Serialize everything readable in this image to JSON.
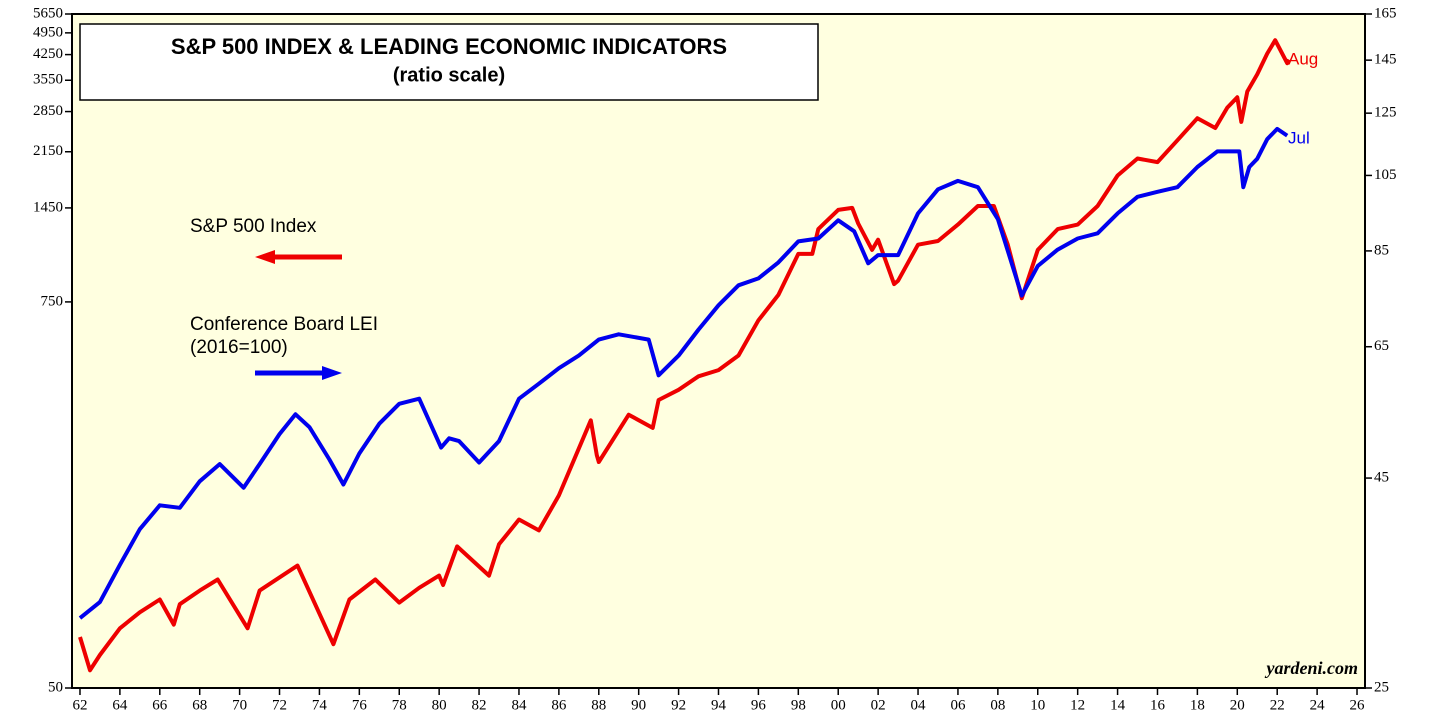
{
  "chart_data": {
    "type": "line",
    "title": "S&P 500 INDEX & LEADING ECONOMIC INDICATORS",
    "subtitle": "(ratio scale)",
    "source": "yardeni.com",
    "xlim": [
      1961.6,
      2026.4
    ],
    "xticks": [
      {
        "value": 1962,
        "label": "62"
      },
      {
        "value": 1964,
        "label": "64"
      },
      {
        "value": 1966,
        "label": "66"
      },
      {
        "value": 1968,
        "label": "68"
      },
      {
        "value": 1970,
        "label": "70"
      },
      {
        "value": 1972,
        "label": "72"
      },
      {
        "value": 1974,
        "label": "74"
      },
      {
        "value": 1976,
        "label": "76"
      },
      {
        "value": 1978,
        "label": "78"
      },
      {
        "value": 1980,
        "label": "80"
      },
      {
        "value": 1982,
        "label": "82"
      },
      {
        "value": 1984,
        "label": "84"
      },
      {
        "value": 1986,
        "label": "86"
      },
      {
        "value": 1988,
        "label": "88"
      },
      {
        "value": 1990,
        "label": "90"
      },
      {
        "value": 1992,
        "label": "92"
      },
      {
        "value": 1994,
        "label": "94"
      },
      {
        "value": 1996,
        "label": "96"
      },
      {
        "value": 1998,
        "label": "98"
      },
      {
        "value": 2000,
        "label": "00"
      },
      {
        "value": 2002,
        "label": "02"
      },
      {
        "value": 2004,
        "label": "04"
      },
      {
        "value": 2006,
        "label": "06"
      },
      {
        "value": 2008,
        "label": "08"
      },
      {
        "value": 2010,
        "label": "10"
      },
      {
        "value": 2012,
        "label": "12"
      },
      {
        "value": 2014,
        "label": "14"
      },
      {
        "value": 2016,
        "label": "16"
      },
      {
        "value": 2018,
        "label": "18"
      },
      {
        "value": 2020,
        "label": "20"
      },
      {
        "value": 2022,
        "label": "22"
      },
      {
        "value": 2024,
        "label": "24"
      },
      {
        "value": 2026,
        "label": "26"
      }
    ],
    "ylim": [
      50,
      5650
    ],
    "yticks": [
      50,
      750,
      1450,
      2150,
      2850,
      3550,
      4250,
      4950,
      5650
    ],
    "ylog": true,
    "y2lim": [
      25,
      165
    ],
    "y2ticks": [
      25,
      45,
      65,
      85,
      105,
      125,
      145,
      165
    ],
    "y2log": true,
    "series": [
      {
        "name": "S&P 500 Index",
        "color": "#ee0000",
        "axis": "y",
        "end_label": "Aug",
        "x": [
          1962.0,
          1962.5,
          1963,
          1964,
          1965,
          1966,
          1966.7,
          1967,
          1968,
          1968.9,
          1970.4,
          1971,
          1972.9,
          1974.7,
          1975.5,
          1976.8,
          1978,
          1979,
          1980,
          1980.2,
          1980.9,
          1982.5,
          1983,
          1984,
          1985,
          1986,
          1987.6,
          1987.9,
          1988,
          1989.5,
          1990.7,
          1991,
          1992,
          1993,
          1994,
          1995,
          1996,
          1997,
          1998,
          1998.7,
          1999,
          2000,
          2000.7,
          2001,
          2001.7,
          2002,
          2002.8,
          2003,
          2004,
          2005,
          2006,
          2007,
          2007.8,
          2008.5,
          2009.2,
          2010,
          2011,
          2012,
          2013,
          2014,
          2015,
          2016,
          2017,
          2018,
          2018.9,
          2019.5,
          2020,
          2020.2,
          2020.5,
          2021,
          2021.5,
          2021.9,
          2022.5,
          2022.6
        ],
        "values": [
          71.5,
          56.6,
          63,
          76,
          85,
          93,
          78,
          90,
          99,
          107,
          76,
          99,
          118,
          68,
          93,
          107,
          91,
          101,
          110,
          103,
          135,
          110,
          137,
          163,
          151,
          193,
          327,
          256,
          244,
          340,
          310,
          377,
          405,
          445,
          465,
          515,
          659,
          788,
          1050,
          1050,
          1250,
          1430,
          1450,
          1300,
          1080,
          1160,
          850,
          870,
          1120,
          1150,
          1290,
          1470,
          1470,
          1120,
          770,
          1080,
          1250,
          1290,
          1470,
          1820,
          2050,
          2000,
          2330,
          2720,
          2540,
          2930,
          3150,
          2650,
          3280,
          3700,
          4280,
          4700,
          4000,
          4100
        ]
      },
      {
        "name": "Conference Board LEI",
        "color": "#0000ee",
        "axis": "y2",
        "end_label": "Jul",
        "note": "(2016=100)",
        "x": [
          1962,
          1963,
          1964,
          1965,
          1966,
          1967,
          1968,
          1969,
          1970.2,
          1971,
          1972,
          1972.8,
          1973.5,
          1974.5,
          1975.2,
          1976,
          1977,
          1978,
          1979,
          1980.1,
          1980.5,
          1981,
          1982,
          1983,
          1984,
          1985,
          1986,
          1987,
          1988,
          1989,
          1990.5,
          1991,
          1992,
          1993,
          1994,
          1995,
          1996,
          1997,
          1998,
          1999,
          2000,
          2000.8,
          2001.5,
          2002,
          2003,
          2004,
          2005,
          2006,
          2007,
          2008,
          2009.2,
          2010,
          2011,
          2012,
          2013,
          2014,
          2015,
          2016,
          2017,
          2018,
          2019,
          2020.1,
          2020.3,
          2020.6,
          2021,
          2021.5,
          2022,
          2022.5
        ],
        "values": [
          30.4,
          31.8,
          35.3,
          39.0,
          41.7,
          41.4,
          44.6,
          46.8,
          43.8,
          46.8,
          50.9,
          53.8,
          51.9,
          47.4,
          44.2,
          48.2,
          52.4,
          55.4,
          56.2,
          49.0,
          50.3,
          49.9,
          47,
          49.9,
          56.2,
          58.6,
          61.2,
          63.4,
          66.3,
          67.3,
          66.3,
          60.0,
          63.4,
          68.2,
          73.0,
          77.2,
          78.7,
          82.3,
          87.3,
          88.0,
          92.6,
          89.8,
          82.1,
          84.0,
          84.0,
          94.4,
          101.0,
          103.4,
          101.6,
          92.9,
          75.0,
          81.5,
          85.3,
          88.0,
          89.3,
          94.4,
          98.9,
          100.3,
          101.6,
          107.5,
          112.3,
          112.3,
          101.6,
          107.5,
          110,
          116.2,
          119.6,
          117.4
        ]
      }
    ]
  }
}
